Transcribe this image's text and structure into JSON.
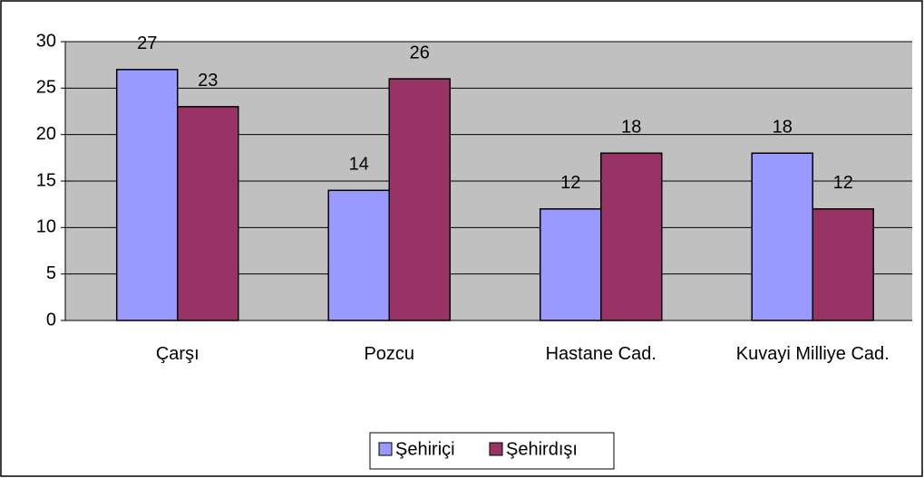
{
  "chart_data": {
    "type": "bar",
    "categories": [
      "Çarşı",
      "Pozcu",
      "Hastane Cad.",
      "Kuvayi Milliye Cad."
    ],
    "series": [
      {
        "name": "Şehiriçi",
        "color": "#9999ff",
        "values": [
          27,
          14,
          12,
          18
        ]
      },
      {
        "name": "Şehirdışı",
        "color": "#993366",
        "values": [
          23,
          26,
          18,
          12
        ]
      }
    ],
    "ylim": [
      0,
      30
    ],
    "yticks": [
      0,
      5,
      10,
      15,
      20,
      25,
      30
    ],
    "grid": true,
    "legend": "bottom"
  }
}
